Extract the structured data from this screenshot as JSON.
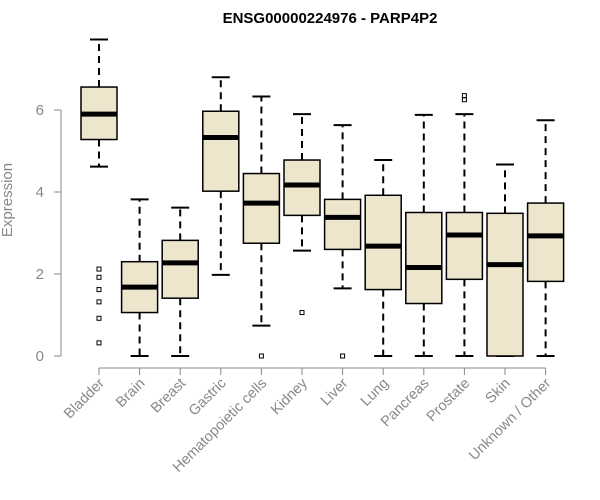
{
  "chart_data": {
    "type": "boxplot",
    "title": "ENSG00000224976 - PARP4P2",
    "xlabel": "",
    "ylabel": "Expression",
    "ylim": [
      0,
      7.8
    ],
    "yticks": [
      0,
      2,
      4,
      6
    ],
    "box_fill": "#ede5cc",
    "series": [
      {
        "name": "Bladder",
        "whisker_low": 4.62,
        "q1": 5.28,
        "median": 5.9,
        "q3": 6.56,
        "whisker_high": 7.72,
        "outliers": [
          2.12,
          1.92,
          1.62,
          1.32,
          0.92,
          0.32
        ]
      },
      {
        "name": "Brain",
        "whisker_low": 0.0,
        "q1": 1.06,
        "median": 1.68,
        "q3": 2.3,
        "whisker_high": 3.82,
        "outliers": []
      },
      {
        "name": "Breast",
        "whisker_low": 0.0,
        "q1": 1.41,
        "median": 2.27,
        "q3": 2.82,
        "whisker_high": 3.62,
        "outliers": []
      },
      {
        "name": "Gastric",
        "whisker_low": 1.98,
        "q1": 4.02,
        "median": 5.33,
        "q3": 5.97,
        "whisker_high": 6.8,
        "outliers": []
      },
      {
        "name": "Hematopoietic cells",
        "whisker_low": 0.74,
        "q1": 2.75,
        "median": 3.73,
        "q3": 4.45,
        "whisker_high": 6.33,
        "outliers": [
          0.0
        ]
      },
      {
        "name": "Kidney",
        "whisker_low": 2.57,
        "q1": 3.43,
        "median": 4.17,
        "q3": 4.78,
        "whisker_high": 5.9,
        "outliers": [
          1.06
        ]
      },
      {
        "name": "Liver",
        "whisker_low": 1.65,
        "q1": 2.6,
        "median": 3.38,
        "q3": 3.82,
        "whisker_high": 5.63,
        "outliers": [
          0.0
        ]
      },
      {
        "name": "Lung",
        "whisker_low": 0.0,
        "q1": 1.62,
        "median": 2.68,
        "q3": 3.92,
        "whisker_high": 4.78,
        "outliers": []
      },
      {
        "name": "Pancreas",
        "whisker_low": 0.0,
        "q1": 1.28,
        "median": 2.16,
        "q3": 3.5,
        "whisker_high": 5.88,
        "outliers": []
      },
      {
        "name": "Prostate",
        "whisker_low": 0.0,
        "q1": 1.87,
        "median": 2.95,
        "q3": 3.5,
        "whisker_high": 5.9,
        "outliers": [
          6.35,
          6.25
        ]
      },
      {
        "name": "Skin",
        "whisker_low": 0.0,
        "q1": 0.0,
        "median": 2.23,
        "q3": 3.48,
        "whisker_high": 4.67,
        "outliers": []
      },
      {
        "name": "Unknown / Other",
        "whisker_low": 0.0,
        "q1": 1.82,
        "median": 2.93,
        "q3": 3.73,
        "whisker_high": 5.75,
        "outliers": []
      }
    ]
  }
}
